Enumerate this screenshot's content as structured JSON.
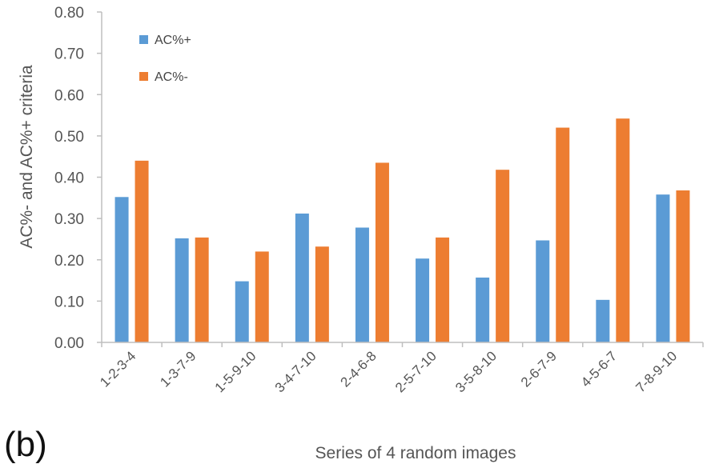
{
  "panel_label": "(b)",
  "chart_data": {
    "type": "bar",
    "title": "",
    "xlabel": "Series of 4 random images",
    "ylabel": "AC%- and AC%+  criteria",
    "ylim": [
      0,
      0.8
    ],
    "yticks": [
      "0.00",
      "0.10",
      "0.20",
      "0.30",
      "0.40",
      "0.50",
      "0.60",
      "0.70",
      "0.80"
    ],
    "categories": [
      "1-2-3-4",
      "1-3-7-9",
      "1-5-9-10",
      "3-4-7-10",
      "2-4-6-8",
      "2-5-7-10",
      "3-5-8-10",
      "2-6-7-9",
      "4-5-6-7",
      "7-8-9-10"
    ],
    "series": [
      {
        "name": "AC%+",
        "color": "#5b9bd5",
        "values": [
          0.352,
          0.252,
          0.148,
          0.312,
          0.278,
          0.203,
          0.157,
          0.247,
          0.103,
          0.358
        ]
      },
      {
        "name": "AC%-",
        "color": "#ed7d31",
        "values": [
          0.44,
          0.254,
          0.22,
          0.232,
          0.435,
          0.254,
          0.418,
          0.52,
          0.542,
          0.368
        ]
      }
    ],
    "grid": false,
    "legend_position": "top-left"
  }
}
